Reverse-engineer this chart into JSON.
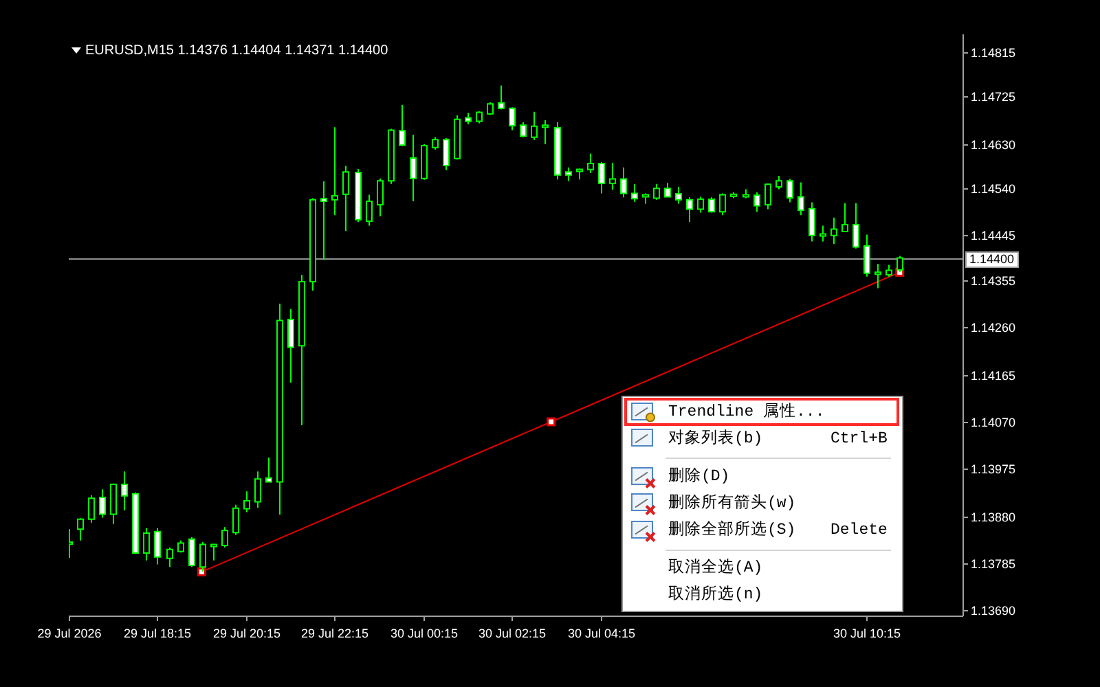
{
  "chart_data": {
    "type": "candlestick",
    "title": "EURUSD,M15 1.14376 1.14404 1.14371 1.14400",
    "color": "#00ff00",
    "x": [
      "2026-07-29T16:15",
      "2026-07-29T16:30",
      "2026-07-29T16:45",
      "2026-07-29T17:00",
      "2026-07-29T17:15",
      "2026-07-29T17:30",
      "2026-07-29T17:45",
      "2026-07-29T18:00",
      "2026-07-29T18:15",
      "2026-07-29T18:30",
      "2026-07-29T18:45",
      "2026-07-29T19:00",
      "2026-07-29T19:15",
      "2026-07-29T19:30",
      "2026-07-29T19:45",
      "2026-07-29T20:00",
      "2026-07-29T20:15",
      "2026-07-29T20:30",
      "2026-07-29T20:45",
      "2026-07-29T21:00",
      "2026-07-29T21:15",
      "2026-07-29T21:30",
      "2026-07-29T21:45",
      "2026-07-29T22:00",
      "2026-07-29T22:15",
      "2026-07-29T22:30",
      "2026-07-29T22:45",
      "2026-07-29T23:00",
      "2026-07-29T23:15",
      "2026-07-29T23:30",
      "2026-07-29T23:45",
      "2026-07-30T00:00",
      "2026-07-30T00:15",
      "2026-07-30T00:30",
      "2026-07-30T00:45",
      "2026-07-30T01:00",
      "2026-07-30T01:15",
      "2026-07-30T01:30",
      "2026-07-30T01:45",
      "2026-07-30T02:00",
      "2026-07-30T02:15",
      "2026-07-30T02:30",
      "2026-07-30T02:45",
      "2026-07-30T03:00",
      "2026-07-30T03:15",
      "2026-07-30T03:30",
      "2026-07-30T03:45",
      "2026-07-30T04:00",
      "2026-07-30T04:15",
      "2026-07-30T04:30",
      "2026-07-30T04:45",
      "2026-07-30T05:00",
      "2026-07-30T05:15",
      "2026-07-30T05:30",
      "2026-07-30T05:45",
      "2026-07-30T06:00",
      "2026-07-30T06:15",
      "2026-07-30T06:30",
      "2026-07-30T06:45",
      "2026-07-30T07:00",
      "2026-07-30T07:15",
      "2026-07-30T07:30",
      "2026-07-30T07:45",
      "2026-07-30T08:00",
      "2026-07-30T08:15",
      "2026-07-30T08:30",
      "2026-07-30T08:45",
      "2026-07-30T09:00",
      "2026-07-30T09:15",
      "2026-07-30T09:30",
      "2026-07-30T09:45",
      "2026-07-30T10:00",
      "2026-07-30T10:15",
      "2026-07-30T10:30",
      "2026-07-30T10:45",
      "2026-07-30T11:00"
    ],
    "ohlc": [
      [
        1.13826,
        1.13854,
        1.13796,
        1.13826
      ],
      [
        1.13854,
        1.13876,
        1.13831,
        1.13874
      ],
      [
        1.13874,
        1.13922,
        1.13867,
        1.13916
      ],
      [
        1.13918,
        1.13934,
        1.13877,
        1.13884
      ],
      [
        1.13884,
        1.13946,
        1.13864,
        1.13944
      ],
      [
        1.13944,
        1.1397,
        1.13892,
        1.13921
      ],
      [
        1.13925,
        1.13928,
        1.13804,
        1.13806
      ],
      [
        1.13806,
        1.13856,
        1.13791,
        1.13846
      ],
      [
        1.13849,
        1.13856,
        1.13783,
        1.13798
      ],
      [
        1.13795,
        1.13817,
        1.13778,
        1.13813
      ],
      [
        1.13809,
        1.13831,
        1.13807,
        1.13826
      ],
      [
        1.13834,
        1.13838,
        1.13778,
        1.13781
      ],
      [
        1.13778,
        1.13828,
        1.13768,
        1.13823
      ],
      [
        1.13821,
        1.13821,
        1.13791,
        1.13821
      ],
      [
        1.13821,
        1.13858,
        1.13817,
        1.13851
      ],
      [
        1.13847,
        1.13903,
        1.13842,
        1.13896
      ],
      [
        1.13895,
        1.1393,
        1.13888,
        1.13911
      ],
      [
        1.13909,
        1.1397,
        1.13897,
        1.13955
      ],
      [
        1.13957,
        1.13998,
        1.13949,
        1.13949
      ],
      [
        1.13949,
        1.14308,
        1.13883,
        1.14274
      ],
      [
        1.14276,
        1.14297,
        1.14149,
        1.1422
      ],
      [
        1.14223,
        1.14366,
        1.14063,
        1.14352
      ],
      [
        1.14352,
        1.1452,
        1.14334,
        1.14517
      ],
      [
        1.14519,
        1.14554,
        1.14396,
        1.14514
      ],
      [
        1.14517,
        1.14663,
        1.14486,
        1.14525
      ],
      [
        1.14528,
        1.14585,
        1.14454,
        1.14573
      ],
      [
        1.14572,
        1.14579,
        1.14472,
        1.14477
      ],
      [
        1.14474,
        1.14527,
        1.14465,
        1.14514
      ],
      [
        1.14507,
        1.1456,
        1.14484,
        1.14555
      ],
      [
        1.14555,
        1.1466,
        1.14549,
        1.14657
      ],
      [
        1.14656,
        1.14708,
        1.14625,
        1.14627
      ],
      [
        1.14601,
        1.14648,
        1.14514,
        1.1456
      ],
      [
        1.1456,
        1.14629,
        1.14557,
        1.14626
      ],
      [
        1.14622,
        1.14643,
        1.14618,
        1.14638
      ],
      [
        1.14638,
        1.14641,
        1.14577,
        1.14586
      ],
      [
        1.146,
        1.14687,
        1.14598,
        1.14679
      ],
      [
        1.14682,
        1.14692,
        1.14669,
        1.14675
      ],
      [
        1.14675,
        1.14695,
        1.14671,
        1.14693
      ],
      [
        1.1469,
        1.14713,
        1.14688,
        1.1471
      ],
      [
        1.14712,
        1.14747,
        1.14699,
        1.14701
      ],
      [
        1.14701,
        1.14703,
        1.14657,
        1.14666
      ],
      [
        1.14667,
        1.14673,
        1.14643,
        1.14645
      ],
      [
        1.14643,
        1.14694,
        1.14637,
        1.14665
      ],
      [
        1.14665,
        1.14677,
        1.14629,
        1.14665
      ],
      [
        1.14662,
        1.14673,
        1.14558,
        1.14567
      ],
      [
        1.14573,
        1.14582,
        1.14555,
        1.14567
      ],
      [
        1.14576,
        1.1458,
        1.14558,
        1.14576
      ],
      [
        1.14578,
        1.1461,
        1.14571,
        1.1459
      ],
      [
        1.1459,
        1.14593,
        1.1453,
        1.1455
      ],
      [
        1.1455,
        1.14591,
        1.14537,
        1.14559
      ],
      [
        1.14559,
        1.14582,
        1.14522,
        1.1453
      ],
      [
        1.1453,
        1.14549,
        1.14513,
        1.14519
      ],
      [
        1.14525,
        1.1453,
        1.14509,
        1.14525
      ],
      [
        1.1452,
        1.14549,
        1.14517,
        1.1454
      ],
      [
        1.1454,
        1.14551,
        1.14522,
        1.14523
      ],
      [
        1.14529,
        1.14543,
        1.14509,
        1.14517
      ],
      [
        1.14517,
        1.14522,
        1.14472,
        1.14498
      ],
      [
        1.14498,
        1.14523,
        1.14491,
        1.14518
      ],
      [
        1.14518,
        1.14522,
        1.14491,
        1.14493
      ],
      [
        1.14493,
        1.1453,
        1.14486,
        1.14527
      ],
      [
        1.14526,
        1.14532,
        1.1452,
        1.14526
      ],
      [
        1.14525,
        1.14538,
        1.1452,
        1.14525
      ],
      [
        1.14526,
        1.14532,
        1.14493,
        1.14505
      ],
      [
        1.14507,
        1.1455,
        1.14498,
        1.14548
      ],
      [
        1.14543,
        1.14565,
        1.14538,
        1.14555
      ],
      [
        1.14555,
        1.14559,
        1.14512,
        1.14521
      ],
      [
        1.14523,
        1.14552,
        1.14486,
        1.14496
      ],
      [
        1.14499,
        1.14512,
        1.14433,
        1.14445
      ],
      [
        1.14446,
        1.14465,
        1.14433,
        1.14446
      ],
      [
        1.14445,
        1.14481,
        1.14428,
        1.14458
      ],
      [
        1.14453,
        1.1451,
        1.14452,
        1.14467
      ],
      [
        1.14467,
        1.1451,
        1.14419,
        1.14422
      ],
      [
        1.14424,
        1.14447,
        1.14362,
        1.14369
      ],
      [
        1.14369,
        1.14388,
        1.14339,
        1.14369
      ],
      [
        1.14366,
        1.14386,
        1.14362,
        1.14375
      ],
      [
        1.14376,
        1.14404,
        1.14371,
        1.144
      ]
    ],
    "series": [
      {
        "type": "line",
        "x": [
          "2026-07-29T19:15",
          "2026-07-30T03:08",
          "2026-07-30T11:00"
        ],
        "values": [
          1.13768,
          1.1407,
          1.14371
        ],
        "color": "#e00000",
        "marker": "square"
      }
    ],
    "xlim": [
      "2026-07-29T16:15",
      "2026-07-30T12:25"
    ],
    "ylim": [
      1.1368,
      1.1485
    ],
    "xticks": [
      {
        "value": "2026-07-29T16:15",
        "label": "29 Jul 2026"
      },
      {
        "value": "2026-07-29T18:15",
        "label": "29 Jul 18:15"
      },
      {
        "value": "2026-07-29T20:15",
        "label": "29 Jul 20:15"
      },
      {
        "value": "2026-07-29T22:15",
        "label": "29 Jul 22:15"
      },
      {
        "value": "2026-07-30T00:15",
        "label": "30 Jul 00:15"
      },
      {
        "value": "2026-07-30T02:15",
        "label": "30 Jul 02:15"
      },
      {
        "value": "2026-07-30T04:15",
        "label": "30 Jul 04:15"
      },
      {
        "value": "2026-07-30T10:15",
        "label": "30 Jul 10:15"
      }
    ],
    "yticks": [
      {
        "value": 1.14815,
        "label": "1.14815"
      },
      {
        "value": 1.14725,
        "label": "1.14725"
      },
      {
        "value": 1.1463,
        "label": "1.14630"
      },
      {
        "value": 1.1454,
        "label": "1.14540"
      },
      {
        "value": 1.14445,
        "label": "1.14445"
      },
      {
        "value": 1.14355,
        "label": "1.14355"
      },
      {
        "value": 1.1426,
        "label": "1.14260"
      },
      {
        "value": 1.14165,
        "label": "1.14165"
      },
      {
        "value": 1.1407,
        "label": "1.14070"
      },
      {
        "value": 1.13975,
        "label": "1.13975"
      },
      {
        "value": 1.1388,
        "label": "1.13880"
      },
      {
        "value": 1.13785,
        "label": "1.13785"
      },
      {
        "value": 1.1369,
        "label": "1.13690"
      }
    ],
    "ref_lines": [
      {
        "axis": "y",
        "value": 1.144,
        "label": "1.14400",
        "color": "#909090"
      }
    ],
    "annotations": [
      "Trendline 属性...",
      "对象列表(b)",
      "Ctrl+B",
      "删除(D)",
      "删除所有箭头(w)",
      "删除全部所选(S)",
      "Delete",
      "取消全选(A)",
      "取消所选(n)"
    ]
  }
}
